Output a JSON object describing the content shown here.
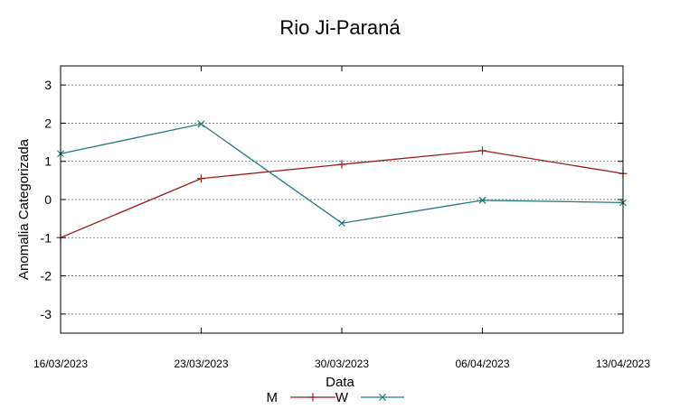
{
  "chart_data": {
    "type": "line",
    "title": "Rio Ji-Paraná",
    "xlabel": "Data",
    "ylabel": "Anomalia Categorizada",
    "categories": [
      "16/03/2023",
      "23/03/2023",
      "30/03/2023",
      "06/04/2023",
      "13/04/2023"
    ],
    "ylim": [
      -3.5,
      3.5
    ],
    "yticks": [
      "3",
      "2",
      "1",
      "0",
      "-1",
      "-2",
      "-3"
    ],
    "grid": true,
    "legend_position": "bottom-center",
    "series": [
      {
        "name": "M",
        "color": "#9b1c1c",
        "marker": "plus",
        "values": [
          -1.0,
          0.55,
          0.92,
          1.28,
          0.68
        ]
      },
      {
        "name": "W",
        "color": "#1f7a7a",
        "marker": "cross",
        "values": [
          1.2,
          1.98,
          -0.62,
          -0.02,
          -0.08
        ]
      }
    ]
  }
}
